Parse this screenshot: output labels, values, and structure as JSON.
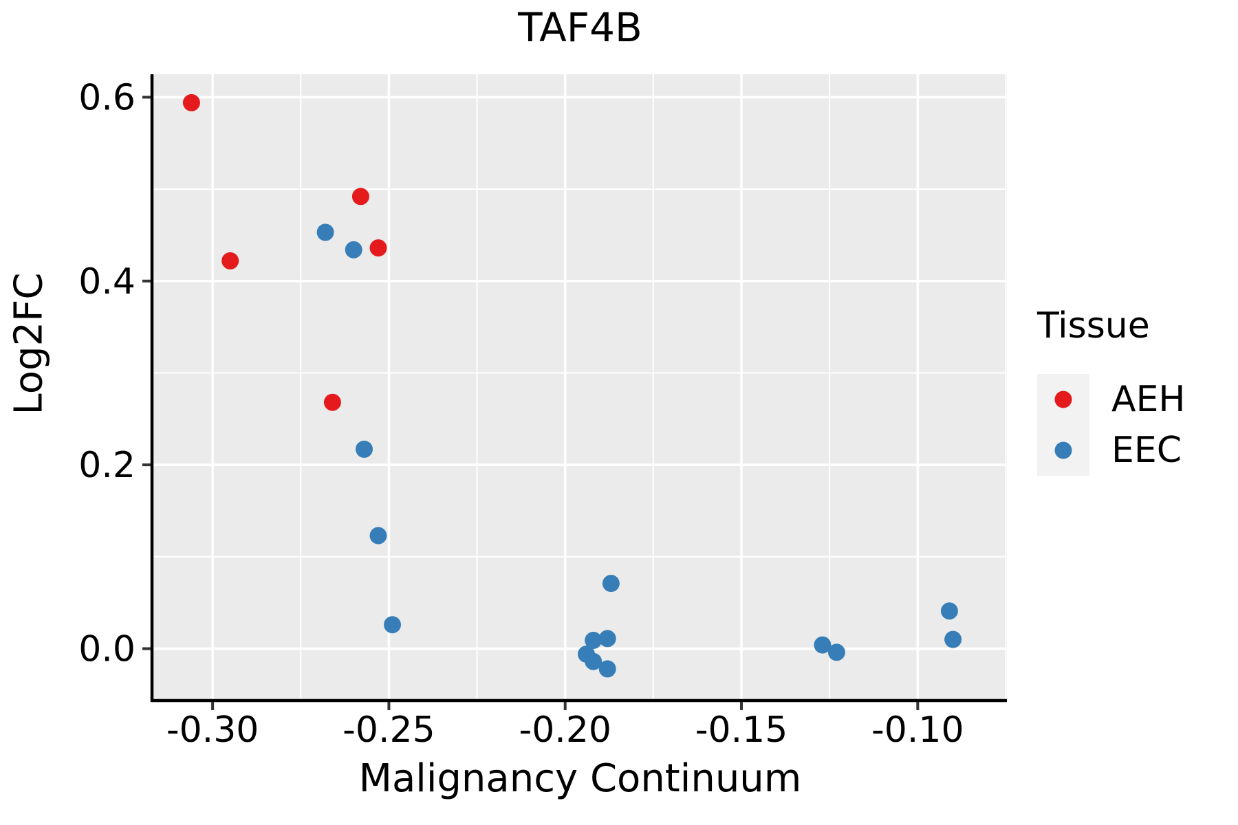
{
  "title": "TAF4B",
  "axes": {
    "x_label": "Malignancy Continuum",
    "y_label": "Log2FC"
  },
  "legend": {
    "title": "Tissue",
    "items": [
      {
        "label": "AEH",
        "color": "#e41a1c"
      },
      {
        "label": "EEC",
        "color": "#377eb8"
      }
    ]
  },
  "colors": {
    "panel_background": "#ebebeb",
    "grid": "#ffffff",
    "axis_line": "#000000",
    "tick": "#333333",
    "aeh_red": "#e41a1c",
    "eec_blue": "#377eb8",
    "legend_key_background": "#f2f2f2"
  },
  "chart_data": {
    "type": "scatter",
    "title": "TAF4B",
    "xlabel": "Malignancy Continuum",
    "ylabel": "Log2FC",
    "xlim": [
      -0.3168,
      -0.0747
    ],
    "ylim": [
      -0.055,
      0.625
    ],
    "x_ticks": [
      -0.3,
      -0.25,
      -0.2,
      -0.15,
      -0.1
    ],
    "x_tick_labels": [
      "-0.30",
      "-0.25",
      "-0.20",
      "-0.15",
      "-0.10"
    ],
    "x_minor_ticks": [
      -0.275,
      -0.225,
      -0.175,
      -0.125,
      -0.075
    ],
    "y_ticks": [
      0.0,
      0.2,
      0.4,
      0.6
    ],
    "y_tick_labels": [
      "0.0",
      "0.2",
      "0.4",
      "0.6"
    ],
    "y_minor_ticks": [
      0.1,
      0.3,
      0.5
    ],
    "grid": {
      "major": true,
      "minor": true,
      "color": "#ffffff"
    },
    "panel_bg": "#ebebeb",
    "legend_position": "right",
    "legend_title": "Tissue",
    "series": [
      {
        "name": "AEH",
        "color": "#e41a1c",
        "points": [
          [
            -0.306,
            0.594
          ],
          [
            -0.295,
            0.422
          ],
          [
            -0.258,
            0.492
          ],
          [
            -0.253,
            0.436
          ],
          [
            -0.266,
            0.268
          ]
        ]
      },
      {
        "name": "EEC",
        "color": "#377eb8",
        "points": [
          [
            -0.268,
            0.453
          ],
          [
            -0.26,
            0.434
          ],
          [
            -0.257,
            0.217
          ],
          [
            -0.253,
            0.123
          ],
          [
            -0.249,
            0.026
          ],
          [
            -0.187,
            0.071
          ],
          [
            -0.192,
            0.009
          ],
          [
            -0.188,
            0.011
          ],
          [
            -0.194,
            -0.006
          ],
          [
            -0.192,
            -0.014
          ],
          [
            -0.188,
            -0.022
          ],
          [
            -0.127,
            0.004
          ],
          [
            -0.123,
            -0.004
          ],
          [
            -0.091,
            0.041
          ],
          [
            -0.09,
            0.01
          ]
        ]
      }
    ]
  }
}
